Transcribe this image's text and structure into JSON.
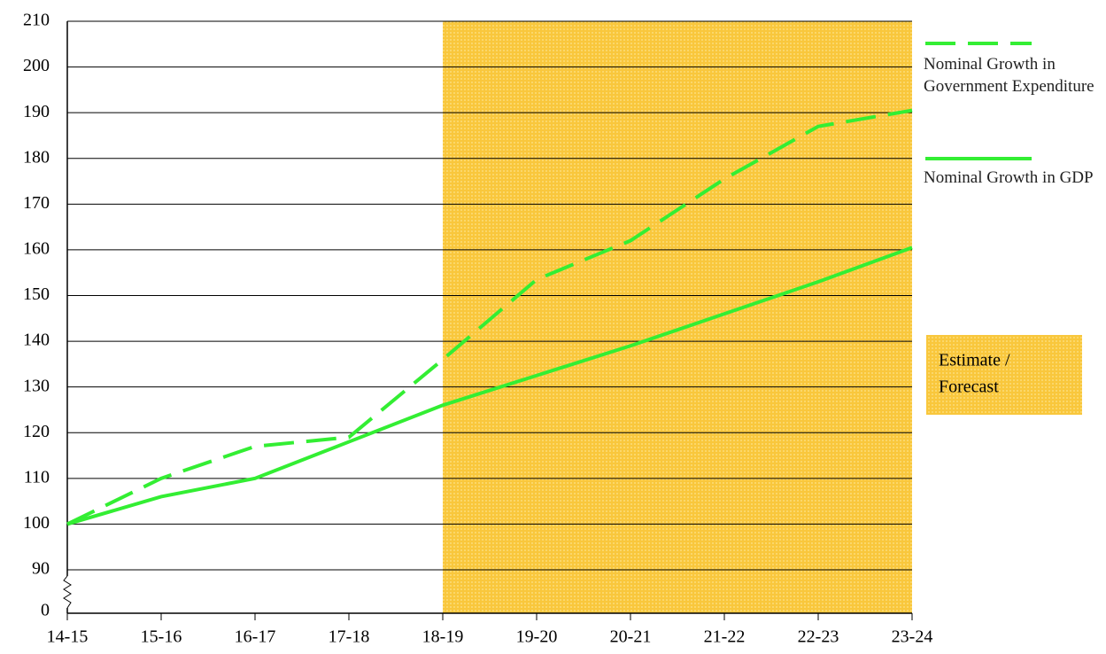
{
  "chart_data": {
    "type": "line",
    "categories": [
      "14-15",
      "15-16",
      "16-17",
      "17-18",
      "18-19",
      "19-20",
      "20-21",
      "21-22",
      "22-23",
      "23-24"
    ],
    "series": [
      {
        "name": "Nominal Growth in Government Expenditure",
        "color": "#33ee33",
        "dashed": true,
        "values": [
          100,
          110,
          117,
          119,
          136,
          153.5,
          162,
          175.5,
          187,
          190.5
        ]
      },
      {
        "name": "Nominal Growth in GDP",
        "color": "#33ee33",
        "dashed": false,
        "values": [
          100,
          106,
          110,
          118,
          126,
          132.5,
          139,
          146,
          153,
          160.5
        ]
      }
    ],
    "ylim": [
      80.5,
      210
    ],
    "yticks": [
      0,
      90,
      100,
      110,
      120,
      130,
      140,
      150,
      160,
      170,
      180,
      190,
      200,
      210
    ],
    "y_axis_break": true,
    "grid": true,
    "legend": "right",
    "shaded_range": [
      "18-19",
      "23-24"
    ],
    "shade_color": "#f9c73c",
    "annotation": [
      "Estimate /",
      "Forecast"
    ]
  }
}
